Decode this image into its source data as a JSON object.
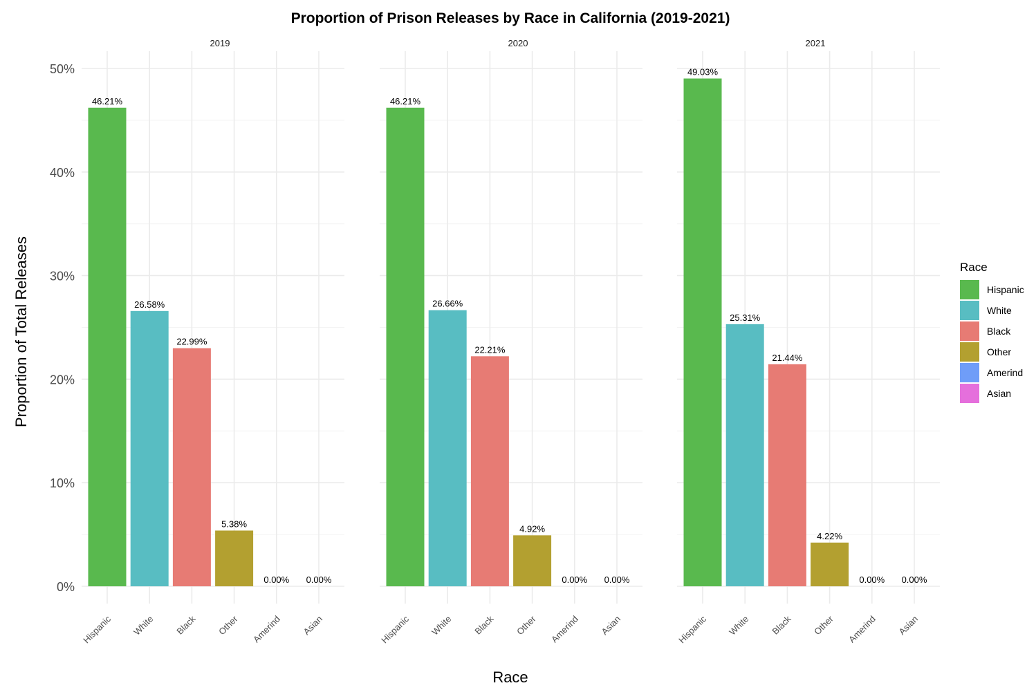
{
  "chart_data": {
    "type": "bar",
    "title": "Proportion of Prison Releases by Race in California (2019-2021)",
    "xlabel": "Race",
    "ylabel": "Proportion of Total Releases",
    "ylim": [
      0,
      50
    ],
    "yticks": [
      0,
      10,
      20,
      30,
      40,
      50
    ],
    "ytick_labels": [
      "0%",
      "10%",
      "20%",
      "30%",
      "40%",
      "50%"
    ],
    "grid": true,
    "legend_position": "right",
    "legend": {
      "title": "Race",
      "items": [
        {
          "label": "Hispanic",
          "color": "#59b94e"
        },
        {
          "label": "White",
          "color": "#58bdc2"
        },
        {
          "label": "Black",
          "color": "#e77b74"
        },
        {
          "label": "Other",
          "color": "#b3a030"
        },
        {
          "label": "Amerind",
          "color": "#6f9df8"
        },
        {
          "label": "Asian",
          "color": "#e56fdc"
        }
      ]
    },
    "categories": [
      "Hispanic",
      "White",
      "Black",
      "Other",
      "Amerind",
      "Asian"
    ],
    "colors": [
      "#59b94e",
      "#58bdc2",
      "#e77b74",
      "#b3a030",
      "#6f9df8",
      "#e56fdc"
    ],
    "facets": [
      {
        "label": "2019",
        "values": [
          46.21,
          26.58,
          22.99,
          5.38,
          0.0,
          0.0
        ],
        "value_labels": [
          "46.21%",
          "26.58%",
          "22.99%",
          "5.38%",
          "0.00%",
          "0.00%"
        ]
      },
      {
        "label": "2020",
        "values": [
          46.21,
          26.66,
          22.21,
          4.92,
          0.0,
          0.0
        ],
        "value_labels": [
          "46.21%",
          "26.66%",
          "22.21%",
          "4.92%",
          "0.00%",
          "0.00%"
        ]
      },
      {
        "label": "2021",
        "values": [
          49.03,
          25.31,
          21.44,
          4.22,
          0.0,
          0.0
        ],
        "value_labels": [
          "49.03%",
          "25.31%",
          "21.44%",
          "4.22%",
          "0.00%",
          "0.00%"
        ]
      }
    ]
  }
}
